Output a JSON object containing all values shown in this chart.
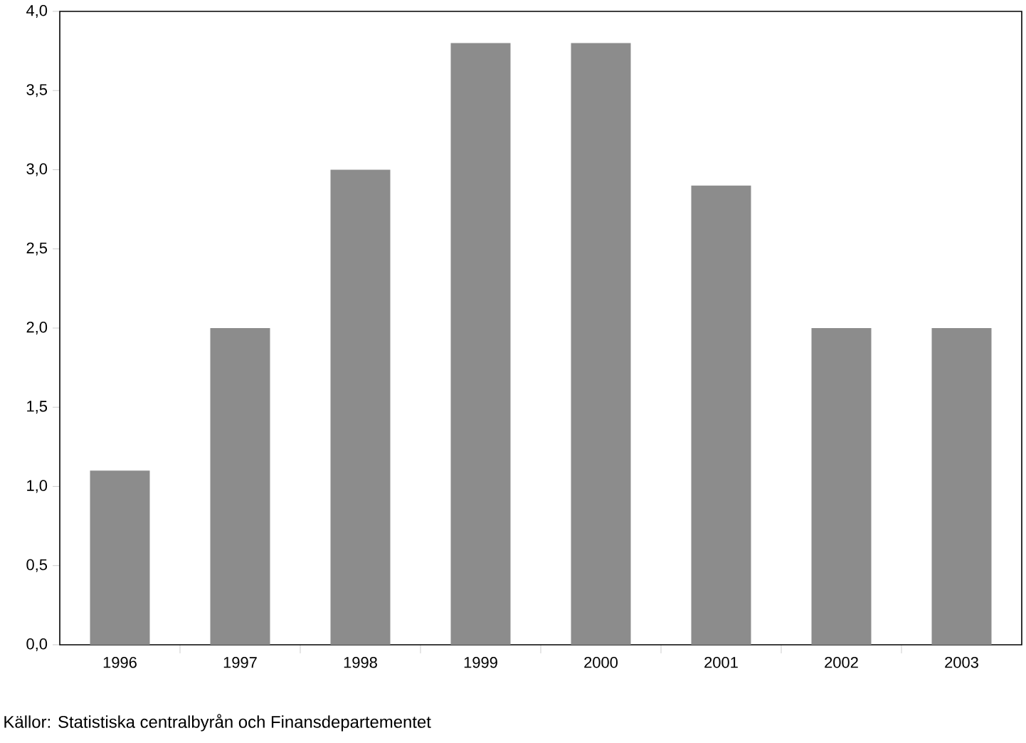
{
  "chart_data": {
    "type": "bar",
    "categories": [
      "1996",
      "1997",
      "1998",
      "1999",
      "2000",
      "2001",
      "2002",
      "2003"
    ],
    "values": [
      1.1,
      2.0,
      3.0,
      3.8,
      3.8,
      2.9,
      2.0,
      2.0
    ],
    "color": "#8c8c8c",
    "ylim": [
      0,
      4
    ],
    "yticks": [
      {
        "value": 0,
        "label": "0,0"
      },
      {
        "value": 0.5,
        "label": "0,5"
      },
      {
        "value": 1,
        "label": "1,0"
      },
      {
        "value": 1.5,
        "label": "1,5"
      },
      {
        "value": 2,
        "label": "2,0"
      },
      {
        "value": 2.5,
        "label": "2,5"
      },
      {
        "value": 3,
        "label": "3,0"
      },
      {
        "value": 3.5,
        "label": "3,5"
      },
      {
        "value": 4,
        "label": "4,0"
      }
    ],
    "grid": false,
    "annotations": [
      "Källor: Statistiska centralbyrån och Finansdepartementet"
    ]
  }
}
